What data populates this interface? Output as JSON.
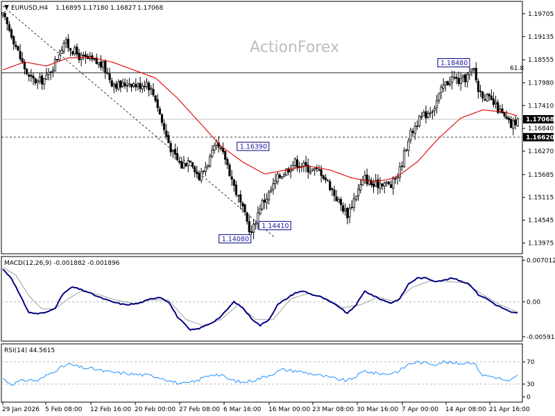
{
  "chart_data": {
    "type": "candlestick",
    "main": {
      "symbol": "EURUSD,H4",
      "ohlc_header": [
        "1.16895",
        "1.17180",
        "1.16827",
        "1.17068"
      ],
      "watermark": "ActionForex",
      "y_ticks": [
        "1.19705",
        "1.19135",
        "1.18555",
        "1.17980",
        "1.17410",
        "1.16840",
        "1.16270",
        "1.15685",
        "1.15115",
        "1.14545",
        "1.13975"
      ],
      "ylim": [
        1.1374,
        1.1998
      ],
      "fib_level": {
        "label": "61.8",
        "value": 1.1823
      },
      "current_price": {
        "label": "1.17068",
        "value": 1.17068
      },
      "support_level": {
        "label": "1.16620",
        "value": 1.1662
      },
      "annotations": [
        {
          "label": "1.18480",
          "value": 1.1848
        },
        {
          "label": "1.16390",
          "value": 1.1639
        },
        {
          "label": "1.14410",
          "value": 1.1441
        },
        {
          "label": "1.14080",
          "value": 1.1408
        }
      ],
      "close_path": [
        [
          0,
          1.1965
        ],
        [
          4,
          1.192
        ],
        [
          8,
          1.186
        ],
        [
          12,
          1.181
        ],
        [
          16,
          1.18
        ],
        [
          20,
          1.181
        ],
        [
          24,
          1.185
        ],
        [
          28,
          1.19
        ],
        [
          32,
          1.188
        ],
        [
          36,
          1.186
        ],
        [
          40,
          1.1855
        ],
        [
          46,
          1.184
        ],
        [
          50,
          1.18
        ],
        [
          54,
          1.179
        ],
        [
          58,
          1.18
        ],
        [
          62,
          1.179
        ],
        [
          66,
          1.18
        ],
        [
          70,
          1.176
        ],
        [
          74,
          1.168
        ],
        [
          78,
          1.162
        ],
        [
          82,
          1.159
        ],
        [
          86,
          1.161
        ],
        [
          90,
          1.156
        ],
        [
          94,
          1.16
        ],
        [
          98,
          1.164
        ],
        [
          102,
          1.161
        ],
        [
          106,
          1.154
        ],
        [
          110,
          1.148
        ],
        [
          114,
          1.142
        ],
        [
          118,
          1.149
        ],
        [
          122,
          1.152
        ],
        [
          126,
          1.156
        ],
        [
          130,
          1.158
        ],
        [
          134,
          1.16
        ],
        [
          138,
          1.159
        ],
        [
          142,
          1.158
        ],
        [
          146,
          1.1575
        ],
        [
          150,
          1.154
        ],
        [
          154,
          1.15
        ],
        [
          158,
          1.147
        ],
        [
          162,
          1.152
        ],
        [
          166,
          1.156
        ],
        [
          170,
          1.154
        ],
        [
          174,
          1.155
        ],
        [
          178,
          1.154
        ],
        [
          182,
          1.158
        ],
        [
          186,
          1.166
        ],
        [
          190,
          1.17
        ],
        [
          194,
          1.172
        ],
        [
          198,
          1.174
        ],
        [
          202,
          1.179
        ],
        [
          206,
          1.181
        ],
        [
          210,
          1.18
        ],
        [
          214,
          1.182
        ],
        [
          216,
          1.183
        ],
        [
          218,
          1.178
        ],
        [
          222,
          1.176
        ],
        [
          226,
          1.174
        ],
        [
          230,
          1.171
        ],
        [
          233,
          1.169
        ],
        [
          236,
          1.1707
        ]
      ],
      "ma_path": [
        [
          0,
          1.183
        ],
        [
          10,
          1.185
        ],
        [
          20,
          1.184
        ],
        [
          30,
          1.186
        ],
        [
          40,
          1.1862
        ],
        [
          50,
          1.185
        ],
        [
          60,
          1.183
        ],
        [
          70,
          1.181
        ],
        [
          80,
          1.176
        ],
        [
          90,
          1.17
        ],
        [
          100,
          1.164
        ],
        [
          110,
          1.16
        ],
        [
          120,
          1.157
        ],
        [
          130,
          1.158
        ],
        [
          140,
          1.159
        ],
        [
          150,
          1.158
        ],
        [
          160,
          1.156
        ],
        [
          170,
          1.155
        ],
        [
          180,
          1.156
        ],
        [
          190,
          1.16
        ],
        [
          200,
          1.166
        ],
        [
          210,
          1.171
        ],
        [
          220,
          1.173
        ],
        [
          230,
          1.1725
        ],
        [
          236,
          1.1715
        ]
      ],
      "trend_line": [
        [
          0,
          1.199
        ],
        [
          125,
          1.141
        ]
      ]
    },
    "macd": {
      "title": "MACD(12,26,9) -0.001882 -0.001896",
      "y_ticks": [
        "0.007012",
        "0.00",
        "-0.005911"
      ],
      "ylim": [
        -0.0064,
        0.0074
      ],
      "macd_line": [
        [
          0,
          0.0055
        ],
        [
          4,
          0.004
        ],
        [
          8,
          0.001
        ],
        [
          12,
          -0.0018
        ],
        [
          16,
          -0.002
        ],
        [
          20,
          -0.0018
        ],
        [
          24,
          -0.001
        ],
        [
          28,
          0.0015
        ],
        [
          32,
          0.0025
        ],
        [
          38,
          0.0018
        ],
        [
          44,
          0.0008
        ],
        [
          50,
          0.0
        ],
        [
          56,
          -0.0005
        ],
        [
          62,
          -0.0003
        ],
        [
          68,
          0.0005
        ],
        [
          72,
          0.0008
        ],
        [
          76,
          0.0
        ],
        [
          80,
          -0.0025
        ],
        [
          86,
          -0.0048
        ],
        [
          90,
          -0.0045
        ],
        [
          96,
          -0.0035
        ],
        [
          100,
          -0.0025
        ],
        [
          106,
          0.0
        ],
        [
          110,
          -0.001
        ],
        [
          114,
          -0.0028
        ],
        [
          118,
          -0.004
        ],
        [
          122,
          -0.003
        ],
        [
          126,
          -0.0005
        ],
        [
          130,
          0.0005
        ],
        [
          134,
          0.0015
        ],
        [
          138,
          0.0018
        ],
        [
          142,
          0.0012
        ],
        [
          146,
          0.0008
        ],
        [
          150,
          0.0
        ],
        [
          154,
          -0.0008
        ],
        [
          158,
          -0.002
        ],
        [
          162,
          -0.0005
        ],
        [
          166,
          0.0018
        ],
        [
          170,
          0.001
        ],
        [
          174,
          0.0003
        ],
        [
          178,
          -0.0002
        ],
        [
          182,
          0.0005
        ],
        [
          186,
          0.003
        ],
        [
          190,
          0.004
        ],
        [
          194,
          0.004
        ],
        [
          198,
          0.0035
        ],
        [
          202,
          0.0036
        ],
        [
          206,
          0.004
        ],
        [
          210,
          0.0035
        ],
        [
          214,
          0.003
        ],
        [
          218,
          0.0012
        ],
        [
          222,
          0.0005
        ],
        [
          226,
          -0.0005
        ],
        [
          230,
          -0.0012
        ],
        [
          233,
          -0.0018
        ],
        [
          236,
          -0.0019
        ]
      ],
      "signal_line": [
        [
          0,
          0.0058
        ],
        [
          6,
          0.0045
        ],
        [
          12,
          0.001
        ],
        [
          18,
          -0.0012
        ],
        [
          24,
          -0.0012
        ],
        [
          30,
          0.0005
        ],
        [
          36,
          0.0018
        ],
        [
          44,
          0.0012
        ],
        [
          52,
          0.0003
        ],
        [
          60,
          -0.0003
        ],
        [
          68,
          0.0003
        ],
        [
          76,
          0.0003
        ],
        [
          84,
          -0.003
        ],
        [
          92,
          -0.004
        ],
        [
          100,
          -0.003
        ],
        [
          108,
          -0.0005
        ],
        [
          116,
          -0.003
        ],
        [
          124,
          -0.003
        ],
        [
          132,
          0.0005
        ],
        [
          140,
          0.0014
        ],
        [
          148,
          0.0006
        ],
        [
          156,
          -0.001
        ],
        [
          164,
          -0.0005
        ],
        [
          172,
          0.0008
        ],
        [
          180,
          0.0
        ],
        [
          188,
          0.0025
        ],
        [
          196,
          0.0035
        ],
        [
          204,
          0.0034
        ],
        [
          212,
          0.0032
        ],
        [
          220,
          0.0012
        ],
        [
          228,
          -0.0005
        ],
        [
          236,
          -0.0017
        ]
      ]
    },
    "rsi": {
      "title": "RSI(14) 44.5615",
      "y_ticks": [
        "70",
        "30",
        "0"
      ],
      "ylim": [
        0,
        100
      ],
      "rsi_line": [
        [
          0,
          40
        ],
        [
          4,
          30
        ],
        [
          8,
          35
        ],
        [
          12,
          38
        ],
        [
          16,
          36
        ],
        [
          20,
          45
        ],
        [
          24,
          55
        ],
        [
          28,
          62
        ],
        [
          30,
          66
        ],
        [
          36,
          60
        ],
        [
          42,
          57
        ],
        [
          48,
          52
        ],
        [
          54,
          50
        ],
        [
          60,
          48
        ],
        [
          66,
          46
        ],
        [
          70,
          44
        ],
        [
          74,
          40
        ],
        [
          78,
          34
        ],
        [
          82,
          30
        ],
        [
          88,
          34
        ],
        [
          92,
          42
        ],
        [
          96,
          48
        ],
        [
          100,
          46
        ],
        [
          104,
          38
        ],
        [
          110,
          33
        ],
        [
          116,
          38
        ],
        [
          122,
          46
        ],
        [
          128,
          56
        ],
        [
          134,
          54
        ],
        [
          140,
          50
        ],
        [
          146,
          45
        ],
        [
          152,
          40
        ],
        [
          158,
          36
        ],
        [
          162,
          44
        ],
        [
          166,
          54
        ],
        [
          170,
          50
        ],
        [
          176,
          48
        ],
        [
          182,
          54
        ],
        [
          186,
          66
        ],
        [
          190,
          70
        ],
        [
          194,
          68
        ],
        [
          198,
          66
        ],
        [
          202,
          70
        ],
        [
          206,
          68
        ],
        [
          210,
          67
        ],
        [
          214,
          70
        ],
        [
          216,
          68
        ],
        [
          220,
          46
        ],
        [
          224,
          44
        ],
        [
          228,
          40
        ],
        [
          232,
          34
        ],
        [
          236,
          45
        ]
      ]
    },
    "x_labels": [
      "29 Jan 2026",
      "5 Feb 08:00",
      "12 Feb 16:00",
      "20 Feb 00:00",
      "27 Feb 08:00",
      "6 Mar 16:00",
      "16 Mar 00:00",
      "23 Mar 08:00",
      "30 Mar 16:00",
      "7 Apr 00:00",
      "14 Apr 08:00",
      "21 Apr 16:00"
    ],
    "colors": {
      "candle": "#000000",
      "ma": "#e00000",
      "macd": "#000080",
      "signal": "#a0a0a0",
      "rsi": "#1e90ff",
      "annotation_border": "#000080",
      "annotation_text": "#1a1aa0",
      "grid_dash": "#9a9a9a"
    }
  }
}
